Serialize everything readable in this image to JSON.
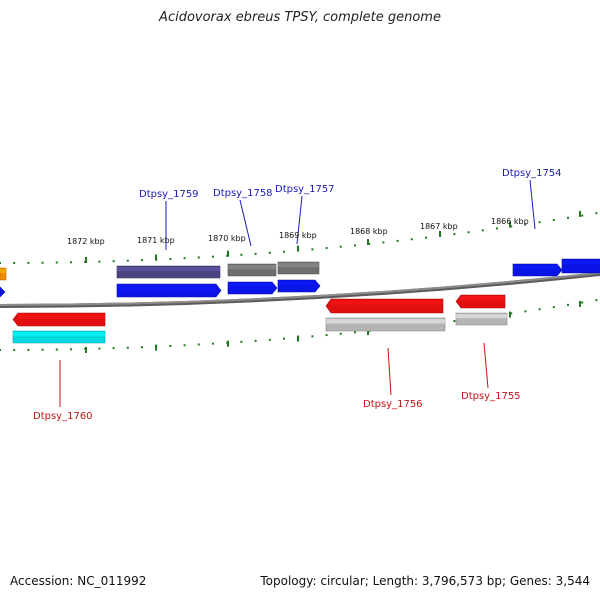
{
  "title": "Acidovorax ebreus TPSY, complete genome",
  "footer": {
    "accession": "Accession: NC_011992",
    "summary": "Topology: circular; Length: 3,796,573 bp; Genes: 3,544"
  },
  "colors": {
    "backbone": "#8c8c8c",
    "tick": "#1f7a1f",
    "forward_label": "#1a1ab8",
    "reverse_label": "#c01515",
    "blue_gene": "#0a14e6",
    "dark_gene": "#4a4480",
    "gray_gene": "#6e6e6e",
    "red_gene": "#e01010",
    "cyan_gene": "#00d8e0",
    "lightgray_gene": "#b4b4b4",
    "orange_gene": "#f08c00"
  },
  "scale_labels": [
    "1872 kbp",
    "1871 kbp",
    "1870 kbp",
    "1869 kbp",
    "1868 kbp",
    "1867 kbp",
    "1866 kbp"
  ],
  "forward_labels": [
    "Dtpsy_1759",
    "Dtpsy_1758",
    "Dtpsy_1757",
    "Dtpsy_1754"
  ],
  "reverse_labels": [
    "Dtpsy_1760",
    "Dtpsy_1756",
    "Dtpsy_1755"
  ]
}
